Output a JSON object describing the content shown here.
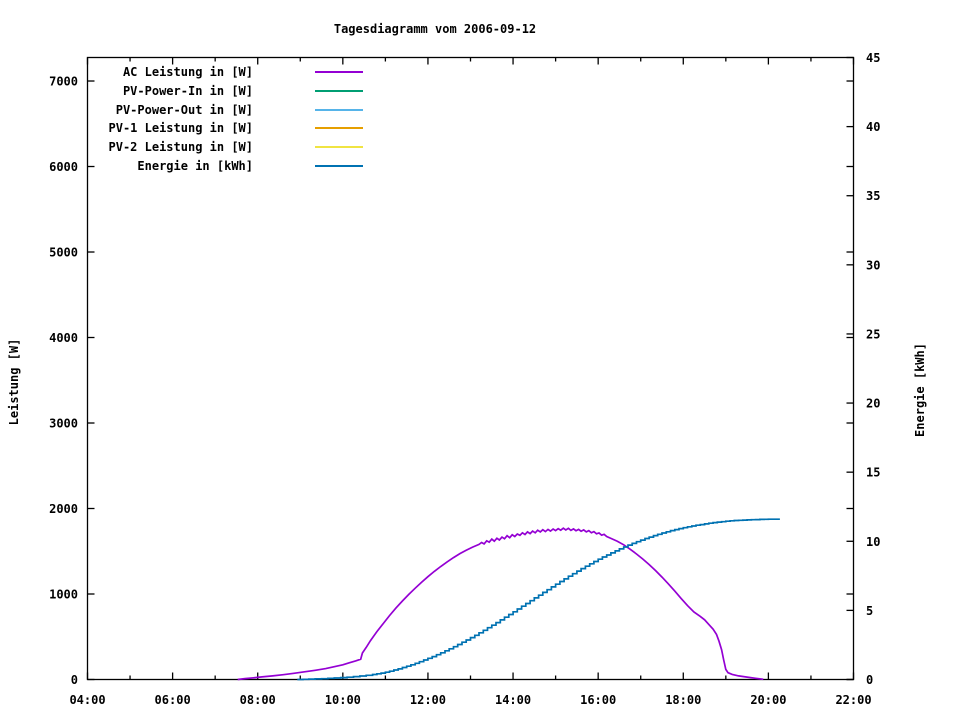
{
  "title": "Tagesdiagramm vom 2006-09-12",
  "chart_data": {
    "type": "line",
    "title": "Tagesdiagramm vom 2006-09-12",
    "xlabel": "",
    "ylabel": "Leistung [W]",
    "y2label": "Energie [kWh]",
    "x_range_hours": [
      4,
      22
    ],
    "ylim": [
      0,
      7275
    ],
    "y2lim": [
      0,
      45
    ],
    "grid": "off",
    "legend_position": "top-left-inside",
    "x_major_hours": [
      4,
      6,
      8,
      10,
      12,
      14,
      16,
      18,
      20,
      22
    ],
    "x_tick_labels": [
      "04:00",
      "06:00",
      "08:00",
      "10:00",
      "12:00",
      "14:00",
      "16:00",
      "18:00",
      "20:00",
      "22:00"
    ],
    "x_minor_hours": [
      5,
      7,
      9,
      11,
      13,
      15,
      17,
      19,
      21
    ],
    "y_ticks": [
      0,
      1000,
      2000,
      3000,
      4000,
      5000,
      6000,
      7000
    ],
    "y2_ticks": [
      0,
      5,
      10,
      15,
      20,
      25,
      30,
      35,
      40,
      45
    ],
    "series": [
      {
        "name": "AC Leistung in [W]",
        "color": "#9400d3",
        "axis": "left",
        "step": false,
        "points": [
          [
            7.53,
            0
          ],
          [
            7.7,
            10
          ],
          [
            7.9,
            20
          ],
          [
            8.1,
            30
          ],
          [
            8.35,
            42
          ],
          [
            8.6,
            56
          ],
          [
            8.85,
            72
          ],
          [
            9.1,
            90
          ],
          [
            9.35,
            108
          ],
          [
            9.6,
            128
          ],
          [
            9.8,
            150
          ],
          [
            10.0,
            172
          ],
          [
            10.15,
            195
          ],
          [
            10.3,
            218
          ],
          [
            10.42,
            238
          ],
          [
            10.46,
            310
          ],
          [
            10.55,
            375
          ],
          [
            10.65,
            455
          ],
          [
            10.8,
            560
          ],
          [
            10.95,
            655
          ],
          [
            11.1,
            748
          ],
          [
            11.25,
            838
          ],
          [
            11.4,
            918
          ],
          [
            11.55,
            995
          ],
          [
            11.7,
            1068
          ],
          [
            11.85,
            1138
          ],
          [
            12.0,
            1202
          ],
          [
            12.15,
            1264
          ],
          [
            12.3,
            1322
          ],
          [
            12.45,
            1376
          ],
          [
            12.6,
            1426
          ],
          [
            12.75,
            1472
          ],
          [
            12.9,
            1512
          ],
          [
            13.05,
            1548
          ],
          [
            13.2,
            1580
          ],
          [
            13.26,
            1602
          ],
          [
            13.32,
            1586
          ],
          [
            13.38,
            1622
          ],
          [
            13.44,
            1606
          ],
          [
            13.5,
            1642
          ],
          [
            13.56,
            1618
          ],
          [
            13.62,
            1652
          ],
          [
            13.68,
            1632
          ],
          [
            13.74,
            1666
          ],
          [
            13.8,
            1646
          ],
          [
            13.86,
            1682
          ],
          [
            13.92,
            1658
          ],
          [
            13.98,
            1692
          ],
          [
            14.04,
            1672
          ],
          [
            14.1,
            1702
          ],
          [
            14.16,
            1686
          ],
          [
            14.22,
            1716
          ],
          [
            14.28,
            1696
          ],
          [
            14.34,
            1726
          ],
          [
            14.4,
            1706
          ],
          [
            14.46,
            1736
          ],
          [
            14.52,
            1716
          ],
          [
            14.58,
            1746
          ],
          [
            14.64,
            1726
          ],
          [
            14.7,
            1752
          ],
          [
            14.76,
            1730
          ],
          [
            14.82,
            1756
          ],
          [
            14.88,
            1736
          ],
          [
            14.94,
            1760
          ],
          [
            15.0,
            1742
          ],
          [
            15.06,
            1764
          ],
          [
            15.12,
            1746
          ],
          [
            15.18,
            1770
          ],
          [
            15.24,
            1748
          ],
          [
            15.3,
            1768
          ],
          [
            15.36,
            1744
          ],
          [
            15.42,
            1762
          ],
          [
            15.48,
            1740
          ],
          [
            15.54,
            1756
          ],
          [
            15.6,
            1734
          ],
          [
            15.66,
            1750
          ],
          [
            15.72,
            1726
          ],
          [
            15.78,
            1742
          ],
          [
            15.84,
            1716
          ],
          [
            15.9,
            1730
          ],
          [
            15.96,
            1704
          ],
          [
            16.02,
            1714
          ],
          [
            16.08,
            1688
          ],
          [
            16.14,
            1698
          ],
          [
            16.2,
            1672
          ],
          [
            16.3,
            1650
          ],
          [
            16.45,
            1618
          ],
          [
            16.6,
            1575
          ],
          [
            16.75,
            1524
          ],
          [
            16.9,
            1468
          ],
          [
            17.05,
            1408
          ],
          [
            17.2,
            1344
          ],
          [
            17.35,
            1274
          ],
          [
            17.5,
            1198
          ],
          [
            17.65,
            1118
          ],
          [
            17.8,
            1034
          ],
          [
            17.95,
            948
          ],
          [
            18.1,
            864
          ],
          [
            18.25,
            790
          ],
          [
            18.4,
            738
          ],
          [
            18.5,
            698
          ],
          [
            18.6,
            645
          ],
          [
            18.7,
            588
          ],
          [
            18.78,
            528
          ],
          [
            18.84,
            448
          ],
          [
            18.9,
            348
          ],
          [
            18.95,
            228
          ],
          [
            19.0,
            118
          ],
          [
            19.05,
            80
          ],
          [
            19.15,
            60
          ],
          [
            19.3,
            42
          ],
          [
            19.5,
            28
          ],
          [
            19.7,
            14
          ],
          [
            19.88,
            2
          ]
        ]
      },
      {
        "name": "PV-Power-In in [W]",
        "color": "#009e73",
        "axis": "left",
        "step": false,
        "points": []
      },
      {
        "name": "PV-Power-Out in [W]",
        "color": "#56b4e9",
        "axis": "left",
        "step": false,
        "points": []
      },
      {
        "name": "PV-1 Leistung in [W]",
        "color": "#e69f00",
        "axis": "left",
        "step": false,
        "points": []
      },
      {
        "name": "PV-2 Leistung in [W]",
        "color": "#f0e442",
        "axis": "left",
        "step": false,
        "points": []
      },
      {
        "name": "Energie in [kWh]",
        "color": "#0072b2",
        "axis": "right",
        "step": true,
        "points": [
          [
            8.93,
            0.0
          ],
          [
            9.2,
            0.03
          ],
          [
            9.5,
            0.06
          ],
          [
            9.8,
            0.11
          ],
          [
            10.1,
            0.17
          ],
          [
            10.4,
            0.25
          ],
          [
            10.7,
            0.36
          ],
          [
            10.9,
            0.46
          ],
          [
            11.1,
            0.6
          ],
          [
            11.3,
            0.77
          ],
          [
            11.5,
            0.96
          ],
          [
            11.7,
            1.17
          ],
          [
            11.9,
            1.41
          ],
          [
            12.1,
            1.66
          ],
          [
            12.3,
            1.93
          ],
          [
            12.5,
            2.22
          ],
          [
            12.7,
            2.53
          ],
          [
            12.9,
            2.86
          ],
          [
            13.1,
            3.2
          ],
          [
            13.3,
            3.56
          ],
          [
            13.5,
            3.93
          ],
          [
            13.7,
            4.31
          ],
          [
            13.9,
            4.7
          ],
          [
            14.1,
            5.1
          ],
          [
            14.3,
            5.5
          ],
          [
            14.5,
            5.9
          ],
          [
            14.7,
            6.3
          ],
          [
            14.9,
            6.7
          ],
          [
            15.1,
            7.09
          ],
          [
            15.3,
            7.47
          ],
          [
            15.5,
            7.84
          ],
          [
            15.7,
            8.2
          ],
          [
            15.9,
            8.54
          ],
          [
            16.1,
            8.86
          ],
          [
            16.3,
            9.16
          ],
          [
            16.5,
            9.45
          ],
          [
            16.7,
            9.72
          ],
          [
            16.9,
            9.97
          ],
          [
            17.1,
            10.2
          ],
          [
            17.3,
            10.41
          ],
          [
            17.5,
            10.6
          ],
          [
            17.7,
            10.77
          ],
          [
            17.9,
            10.92
          ],
          [
            18.1,
            11.05
          ],
          [
            18.3,
            11.16
          ],
          [
            18.5,
            11.26
          ],
          [
            18.7,
            11.35
          ],
          [
            18.9,
            11.42
          ],
          [
            19.1,
            11.48
          ],
          [
            19.3,
            11.52
          ],
          [
            19.5,
            11.55
          ],
          [
            19.7,
            11.57
          ],
          [
            19.9,
            11.59
          ],
          [
            20.1,
            11.6
          ],
          [
            20.27,
            11.6
          ]
        ]
      }
    ]
  }
}
